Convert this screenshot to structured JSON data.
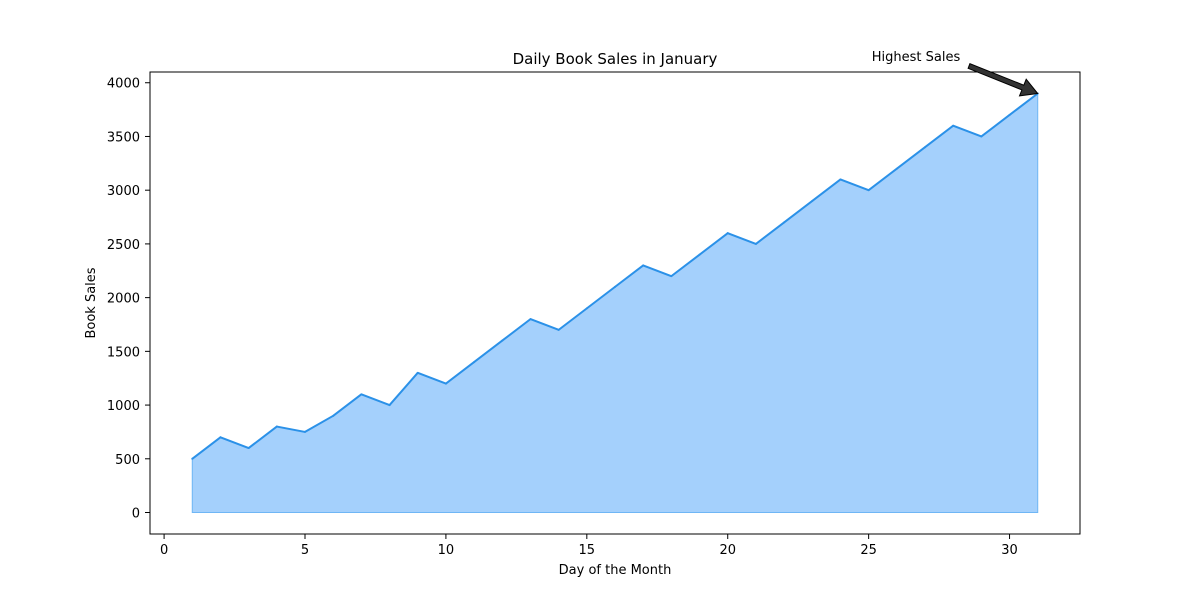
{
  "chart_data": {
    "type": "area",
    "title": "Daily Book Sales in January",
    "xlabel": "Day of the Month",
    "ylabel": "Book Sales",
    "xlim": [
      -0.5,
      32.5
    ],
    "ylim": [
      -200,
      4100
    ],
    "xticks": [
      0,
      5,
      10,
      15,
      20,
      25,
      30
    ],
    "yticks": [
      0,
      500,
      1000,
      1500,
      2000,
      2500,
      3000,
      3500,
      4000
    ],
    "grid": false,
    "colors": {
      "line": "#2b91e8",
      "fill": "#a4d0fc"
    },
    "x": [
      1,
      2,
      3,
      4,
      5,
      6,
      7,
      8,
      9,
      10,
      11,
      12,
      13,
      14,
      15,
      16,
      17,
      18,
      19,
      20,
      21,
      22,
      23,
      24,
      25,
      26,
      27,
      28,
      29,
      30,
      31
    ],
    "series": [
      {
        "values": [
          500,
          700,
          600,
          800,
          750,
          900,
          1100,
          1000,
          1300,
          1200,
          1400,
          1600,
          1800,
          1700,
          1900,
          2100,
          2300,
          2200,
          2400,
          2600,
          2500,
          2700,
          2900,
          3100,
          3000,
          3200,
          3400,
          3600,
          3500,
          3700,
          3900
        ]
      }
    ],
    "annotation": {
      "text": "Highest Sales",
      "x": 31,
      "y": 3900
    }
  }
}
